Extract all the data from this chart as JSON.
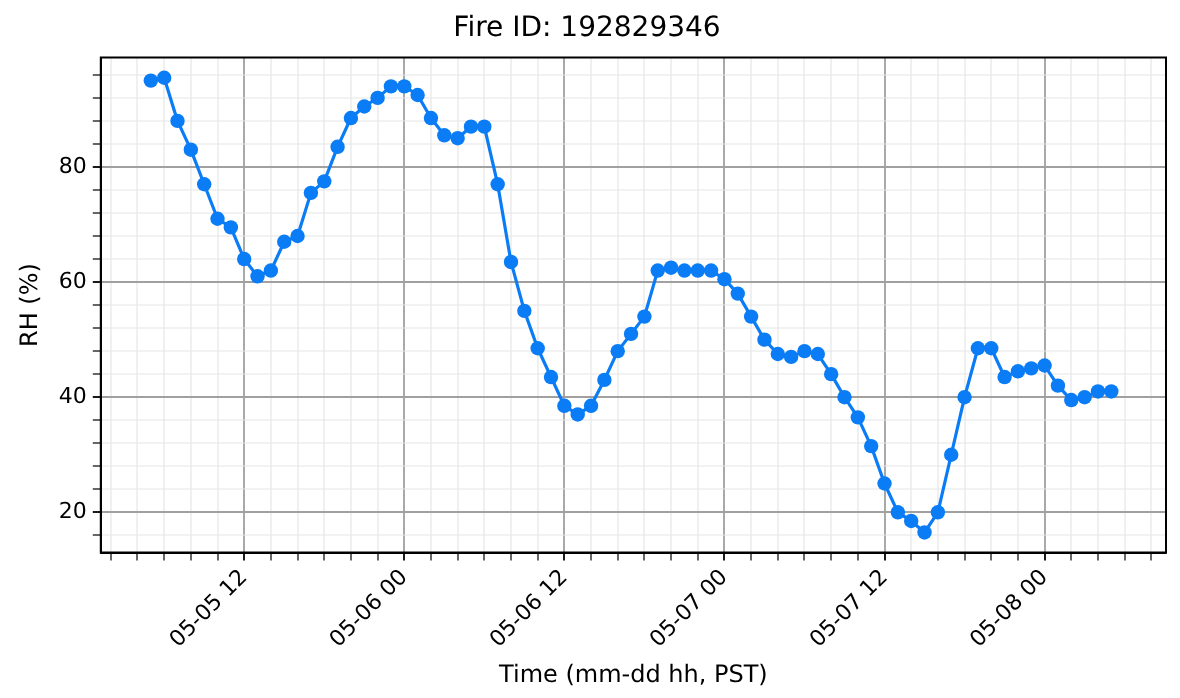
{
  "chart_data": {
    "type": "line",
    "title": "Fire ID: 192829346",
    "xlabel": "Time (mm-dd hh, PST)",
    "ylabel": "RH (%)",
    "x": [
      "--05-05T05:00",
      "--05-05T06:00",
      "--05-05T07:00",
      "--05-05T08:00",
      "--05-05T09:00",
      "--05-05T10:00",
      "--05-05T11:00",
      "--05-05T12:00",
      "--05-05T13:00",
      "--05-05T14:00",
      "--05-05T15:00",
      "--05-05T16:00",
      "--05-05T17:00",
      "--05-05T18:00",
      "--05-05T19:00",
      "--05-05T20:00",
      "--05-05T21:00",
      "--05-05T22:00",
      "--05-05T23:00",
      "--05-06T00:00",
      "--05-06T01:00",
      "--05-06T02:00",
      "--05-06T03:00",
      "--05-06T04:00",
      "--05-06T05:00",
      "--05-06T06:00",
      "--05-06T07:00",
      "--05-06T08:00",
      "--05-06T09:00",
      "--05-06T10:00",
      "--05-06T11:00",
      "--05-06T12:00",
      "--05-06T13:00",
      "--05-06T14:00",
      "--05-06T15:00",
      "--05-06T16:00",
      "--05-06T17:00",
      "--05-06T18:00",
      "--05-06T19:00",
      "--05-06T20:00",
      "--05-06T21:00",
      "--05-06T22:00",
      "--05-06T23:00",
      "--05-07T00:00",
      "--05-07T01:00",
      "--05-07T02:00",
      "--05-07T03:00",
      "--05-07T04:00",
      "--05-07T05:00",
      "--05-07T06:00",
      "--05-07T07:00",
      "--05-07T08:00",
      "--05-07T09:00",
      "--05-07T10:00",
      "--05-07T11:00",
      "--05-07T12:00",
      "--05-07T13:00",
      "--05-07T14:00",
      "--05-07T15:00",
      "--05-07T16:00",
      "--05-07T17:00",
      "--05-07T18:00",
      "--05-07T19:00",
      "--05-07T20:00",
      "--05-07T21:00",
      "--05-07T22:00",
      "--05-07T23:00",
      "--05-08T00:00",
      "--05-08T01:00",
      "--05-08T02:00",
      "--05-08T03:00",
      "--05-08T04:00",
      "--05-08T05:00"
    ],
    "series": [
      {
        "color": "#0a7cf5",
        "values": [
          95,
          95.5,
          88,
          83,
          77,
          71,
          69.5,
          64,
          61,
          62,
          67,
          68,
          75.5,
          77.5,
          83.5,
          88.5,
          90.5,
          92,
          94,
          94,
          92.5,
          88.5,
          85.5,
          85,
          87,
          87,
          77,
          63.5,
          55,
          48.5,
          43.5,
          38.5,
          37,
          38.5,
          43,
          48,
          51,
          54,
          62,
          62.5,
          62,
          62,
          62,
          60.5,
          58,
          54,
          50,
          47.5,
          47,
          48,
          47.5,
          44,
          40,
          36.5,
          31.5,
          25,
          20,
          18.5,
          16.5,
          20,
          30,
          40,
          48.5,
          48.5,
          43.5,
          44.5,
          45,
          45.5,
          42,
          39.5,
          40,
          41,
          41
        ]
      }
    ],
    "xlim": [
      "--05-05T01:15",
      "--05-08T09:06"
    ],
    "ylim": [
      13,
      99
    ],
    "xticks": [
      {
        "value": "--05-05T02:00",
        "label": null
      },
      {
        "value": "--05-05T04:00",
        "label": null
      },
      {
        "value": "--05-05T06:00",
        "label": null
      },
      {
        "value": "--05-05T08:00",
        "label": null
      },
      {
        "value": "--05-05T10:00",
        "label": null
      },
      {
        "value": "--05-05T12:00",
        "label": "05-05 12"
      },
      {
        "value": "--05-05T14:00",
        "label": null
      },
      {
        "value": "--05-05T16:00",
        "label": null
      },
      {
        "value": "--05-05T18:00",
        "label": null
      },
      {
        "value": "--05-05T20:00",
        "label": null
      },
      {
        "value": "--05-05T22:00",
        "label": null
      },
      {
        "value": "--05-06T00:00",
        "label": "05-06 00"
      },
      {
        "value": "--05-06T02:00",
        "label": null
      },
      {
        "value": "--05-06T04:00",
        "label": null
      },
      {
        "value": "--05-06T06:00",
        "label": null
      },
      {
        "value": "--05-06T08:00",
        "label": null
      },
      {
        "value": "--05-06T10:00",
        "label": null
      },
      {
        "value": "--05-06T12:00",
        "label": "05-06 12"
      },
      {
        "value": "--05-06T14:00",
        "label": null
      },
      {
        "value": "--05-06T16:00",
        "label": null
      },
      {
        "value": "--05-06T18:00",
        "label": null
      },
      {
        "value": "--05-06T20:00",
        "label": null
      },
      {
        "value": "--05-06T22:00",
        "label": null
      },
      {
        "value": "--05-07T00:00",
        "label": "05-07 00"
      },
      {
        "value": "--05-07T02:00",
        "label": null
      },
      {
        "value": "--05-07T04:00",
        "label": null
      },
      {
        "value": "--05-07T06:00",
        "label": null
      },
      {
        "value": "--05-07T08:00",
        "label": null
      },
      {
        "value": "--05-07T10:00",
        "label": null
      },
      {
        "value": "--05-07T12:00",
        "label": "05-07 12"
      },
      {
        "value": "--05-07T14:00",
        "label": null
      },
      {
        "value": "--05-07T16:00",
        "label": null
      },
      {
        "value": "--05-07T18:00",
        "label": null
      },
      {
        "value": "--05-07T20:00",
        "label": null
      },
      {
        "value": "--05-07T22:00",
        "label": null
      },
      {
        "value": "--05-08T00:00",
        "label": "05-08 00"
      },
      {
        "value": "--05-08T02:00",
        "label": null
      },
      {
        "value": "--05-08T04:00",
        "label": null
      },
      {
        "value": "--05-08T06:00",
        "label": null
      },
      {
        "value": "--05-08T08:00",
        "label": null
      }
    ],
    "yticks": [
      {
        "value": 16,
        "label": null
      },
      20,
      {
        "value": 24,
        "label": null
      },
      {
        "value": 28,
        "label": null
      },
      {
        "value": 32,
        "label": null
      },
      {
        "value": 36,
        "label": null
      },
      40,
      {
        "value": 44,
        "label": null
      },
      {
        "value": 48,
        "label": null
      },
      {
        "value": 52,
        "label": null
      },
      {
        "value": 56,
        "label": null
      },
      60,
      {
        "value": 64,
        "label": null
      },
      {
        "value": 68,
        "label": null
      },
      {
        "value": 72,
        "label": null
      },
      {
        "value": 76,
        "label": null
      },
      80,
      {
        "value": 84,
        "label": null
      },
      {
        "value": 88,
        "label": null
      },
      {
        "value": 92,
        "label": null
      },
      {
        "value": 96,
        "label": null
      }
    ],
    "grid": true,
    "legend": false,
    "marker": "circle",
    "line_style": "solid"
  }
}
